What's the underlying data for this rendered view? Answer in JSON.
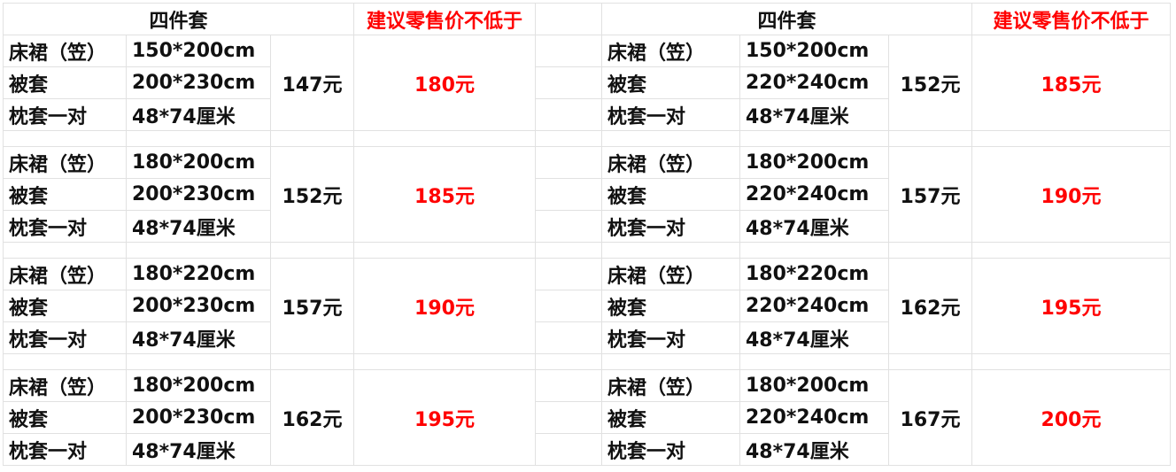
{
  "header": {
    "set_title": "四件套",
    "retail_title": "建议零售价不低于"
  },
  "colors": {
    "retail_price": "#ff0000",
    "text": "#111111",
    "grid": "#e1e1e1"
  },
  "tables": [
    {
      "blocks": [
        {
          "rows": [
            {
              "item": "床裙（笠）",
              "size": "150*200cm"
            },
            {
              "item": "被套",
              "size": "200*230cm"
            },
            {
              "item": "枕套一对",
              "size": "48*74厘米"
            }
          ],
          "price": "147元",
          "retail": "180元"
        },
        {
          "rows": [
            {
              "item": "床裙（笠）",
              "size": "180*200cm"
            },
            {
              "item": "被套",
              "size": "200*230cm"
            },
            {
              "item": "枕套一对",
              "size": "48*74厘米"
            }
          ],
          "price": "152元",
          "retail": "185元"
        },
        {
          "rows": [
            {
              "item": "床裙（笠）",
              "size": "180*220cm"
            },
            {
              "item": "被套",
              "size": "200*230cm"
            },
            {
              "item": "枕套一对",
              "size": "48*74厘米"
            }
          ],
          "price": "157元",
          "retail": "190元"
        },
        {
          "rows": [
            {
              "item": "床裙（笠）",
              "size": "180*200cm"
            },
            {
              "item": "被套",
              "size": "200*230cm"
            },
            {
              "item": "枕套一对",
              "size": "48*74厘米"
            }
          ],
          "price": "162元",
          "retail": "195元"
        }
      ]
    },
    {
      "blocks": [
        {
          "rows": [
            {
              "item": "床裙（笠）",
              "size": "150*200cm"
            },
            {
              "item": "被套",
              "size": "220*240cm"
            },
            {
              "item": "枕套一对",
              "size": "48*74厘米"
            }
          ],
          "price": "152元",
          "retail": "185元"
        },
        {
          "rows": [
            {
              "item": "床裙（笠）",
              "size": "180*200cm"
            },
            {
              "item": "被套",
              "size": "220*240cm"
            },
            {
              "item": "枕套一对",
              "size": "48*74厘米"
            }
          ],
          "price": "157元",
          "retail": "190元"
        },
        {
          "rows": [
            {
              "item": "床裙（笠）",
              "size": "180*220cm"
            },
            {
              "item": "被套",
              "size": "220*240cm"
            },
            {
              "item": "枕套一对",
              "size": "48*74厘米"
            }
          ],
          "price": "162元",
          "retail": "195元"
        },
        {
          "rows": [
            {
              "item": "床裙（笠）",
              "size": "180*200cm"
            },
            {
              "item": "被套",
              "size": "220*240cm"
            },
            {
              "item": "枕套一对",
              "size": "48*74厘米"
            }
          ],
          "price": "167元",
          "retail": "200元"
        }
      ]
    }
  ]
}
